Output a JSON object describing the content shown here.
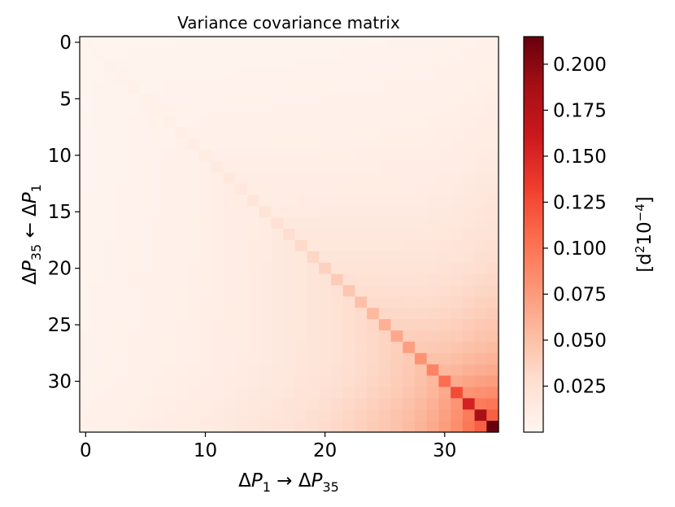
{
  "chart_data": {
    "type": "heatmap",
    "title": "Variance covariance matrix",
    "xlabel": "ΔP₁ → ΔP₃₅",
    "ylabel": "ΔP₃₅ ← ΔP₁",
    "n": 35,
    "x_ticks": [
      "0",
      "10",
      "20",
      "30"
    ],
    "x_tick_values": [
      0,
      10,
      20,
      30
    ],
    "y_ticks": [
      "0",
      "5",
      "10",
      "15",
      "20",
      "25",
      "30"
    ],
    "y_tick_values": [
      0,
      5,
      10,
      15,
      20,
      25,
      30
    ],
    "colormap": "Reds",
    "colorbar": {
      "label": "[d²10⁻⁴]",
      "ticks": [
        "0.025",
        "0.050",
        "0.075",
        "0.100",
        "0.125",
        "0.150",
        "0.175",
        "0.200"
      ],
      "tick_values": [
        0.025,
        0.05,
        0.075,
        0.1,
        0.125,
        0.15,
        0.175,
        0.2
      ],
      "range": [
        0.0,
        0.215
      ]
    },
    "diagonal_values": [
      0.0025,
      0.003,
      0.0035,
      0.004,
      0.005,
      0.006,
      0.007,
      0.008,
      0.009,
      0.01,
      0.012,
      0.014,
      0.016,
      0.018,
      0.02,
      0.022,
      0.025,
      0.028,
      0.031,
      0.034,
      0.038,
      0.042,
      0.046,
      0.05,
      0.055,
      0.06,
      0.066,
      0.072,
      0.08,
      0.09,
      0.105,
      0.125,
      0.155,
      0.185,
      0.215
    ],
    "offdiagonal_note": "values grow toward bottom-right; off-diagonal smaller than diagonal"
  }
}
